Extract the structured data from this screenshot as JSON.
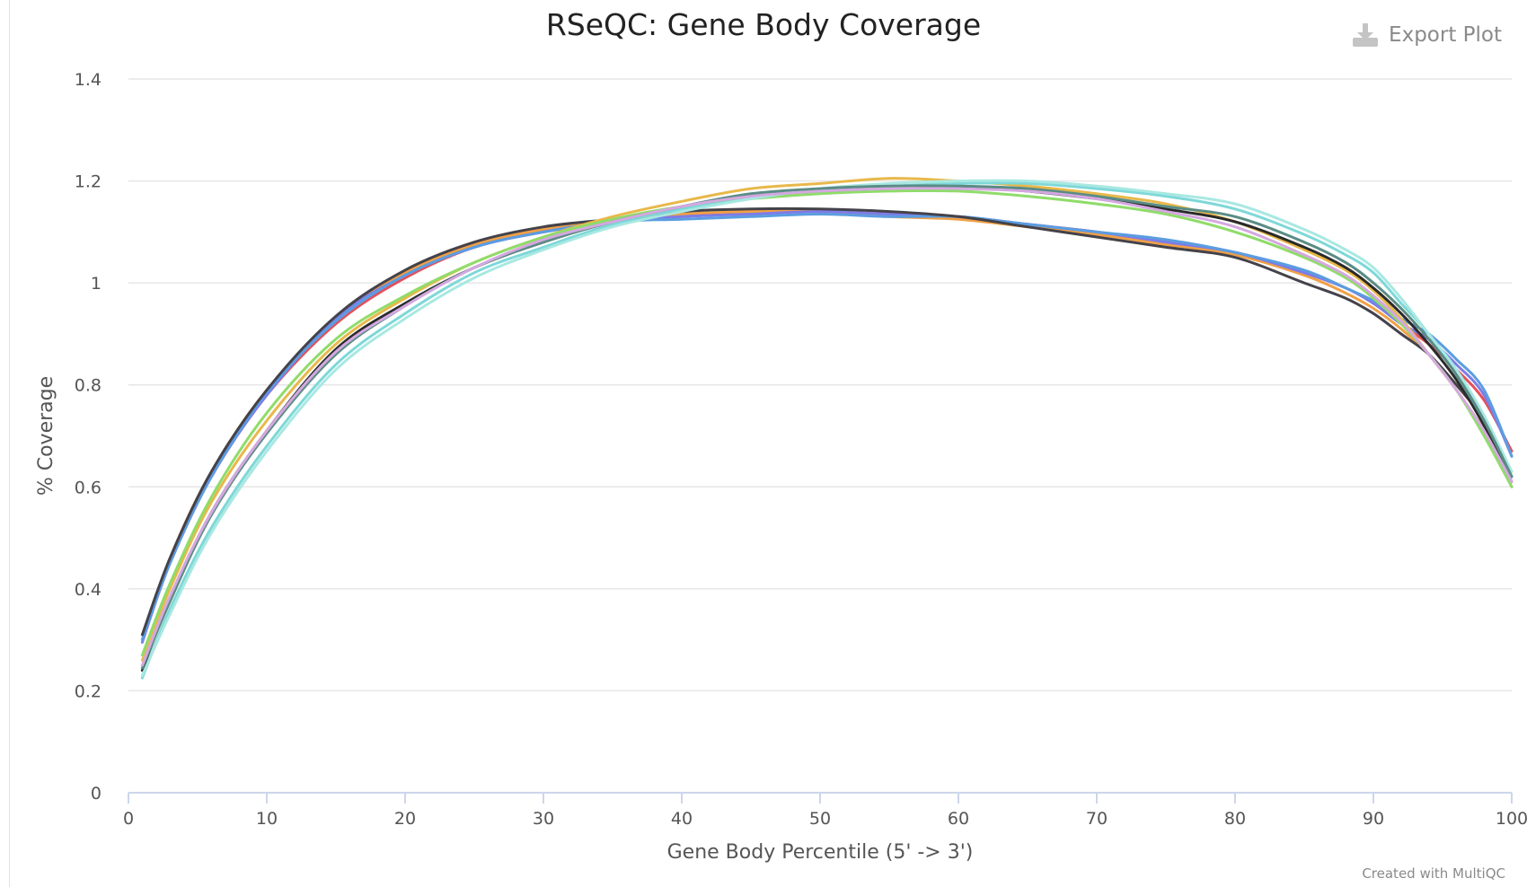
{
  "header": {
    "title": "RSeQC: Gene Body Coverage",
    "export_label": "Export Plot"
  },
  "footer": {
    "credit": "Created with MultiQC"
  },
  "colors": {
    "grid": "#e6e6e6",
    "x_axis": "#ccd6eb"
  },
  "chart_data": {
    "type": "line",
    "title": "RSeQC: Gene Body Coverage",
    "xlabel": "Gene Body Percentile (5' -> 3')",
    "ylabel": "% Coverage",
    "xlim": [
      0,
      100
    ],
    "ylim": [
      0,
      1.4
    ],
    "x_ticks": [
      0,
      10,
      20,
      30,
      40,
      50,
      60,
      70,
      80,
      90,
      100
    ],
    "y_ticks": [
      0,
      0.2,
      0.4,
      0.6,
      0.8,
      1,
      1.2,
      1.4
    ],
    "y_tick_labels": [
      "0",
      "0.2",
      "0.4",
      "0.6",
      "0.8",
      "1",
      "1.2",
      "1.4"
    ],
    "grid": true,
    "legend": "none",
    "x": [
      1,
      3,
      6,
      10,
      15,
      20,
      25,
      30,
      35,
      40,
      45,
      50,
      55,
      60,
      65,
      70,
      75,
      80,
      85,
      88,
      90,
      92,
      94,
      96,
      98,
      100
    ],
    "series": [
      {
        "color": "#e4505a",
        "values": [
          0.3,
          0.45,
          0.62,
          0.78,
          0.92,
          1.01,
          1.07,
          1.1,
          1.12,
          1.13,
          1.14,
          1.14,
          1.135,
          1.13,
          1.115,
          1.1,
          1.08,
          1.06,
          1.02,
          0.99,
          0.96,
          0.92,
          0.88,
          0.83,
          0.77,
          0.67
        ]
      },
      {
        "color": "#f0a046",
        "values": [
          0.3,
          0.46,
          0.63,
          0.79,
          0.93,
          1.02,
          1.075,
          1.105,
          1.12,
          1.135,
          1.14,
          1.14,
          1.13,
          1.125,
          1.11,
          1.095,
          1.075,
          1.055,
          1.015,
          0.98,
          0.95,
          0.91,
          0.86,
          0.8,
          0.73,
          0.63
        ]
      },
      {
        "color": "#7c7ce8",
        "values": [
          0.295,
          0.45,
          0.62,
          0.78,
          0.93,
          1.015,
          1.07,
          1.1,
          1.12,
          1.13,
          1.135,
          1.14,
          1.135,
          1.13,
          1.115,
          1.1,
          1.08,
          1.06,
          1.02,
          0.99,
          0.96,
          0.92,
          0.89,
          0.84,
          0.78,
          0.66
        ]
      },
      {
        "color": "#5b9de0",
        "values": [
          0.3,
          0.45,
          0.62,
          0.785,
          0.925,
          1.015,
          1.07,
          1.1,
          1.12,
          1.125,
          1.13,
          1.135,
          1.13,
          1.13,
          1.115,
          1.1,
          1.085,
          1.06,
          1.025,
          0.99,
          0.965,
          0.93,
          0.9,
          0.85,
          0.79,
          0.66
        ]
      },
      {
        "color": "#44424a",
        "values": [
          0.31,
          0.46,
          0.63,
          0.79,
          0.935,
          1.025,
          1.08,
          1.11,
          1.125,
          1.14,
          1.145,
          1.145,
          1.14,
          1.13,
          1.11,
          1.09,
          1.07,
          1.05,
          1.0,
          0.97,
          0.94,
          0.9,
          0.86,
          0.8,
          0.73,
          0.62
        ]
      },
      {
        "color": "#e8b84a",
        "values": [
          0.26,
          0.4,
          0.57,
          0.73,
          0.88,
          0.97,
          1.04,
          1.09,
          1.13,
          1.16,
          1.185,
          1.195,
          1.205,
          1.2,
          1.19,
          1.175,
          1.155,
          1.12,
          1.065,
          1.025,
          0.985,
          0.93,
          0.86,
          0.79,
          0.71,
          0.6
        ]
      },
      {
        "color": "#2a2a2a",
        "values": [
          0.24,
          0.38,
          0.55,
          0.71,
          0.87,
          0.96,
          1.03,
          1.08,
          1.12,
          1.145,
          1.17,
          1.18,
          1.185,
          1.19,
          1.18,
          1.165,
          1.145,
          1.12,
          1.07,
          1.03,
          0.99,
          0.94,
          0.88,
          0.81,
          0.72,
          0.61
        ]
      },
      {
        "color": "#8fdc6a",
        "values": [
          0.27,
          0.41,
          0.58,
          0.745,
          0.89,
          0.975,
          1.04,
          1.09,
          1.125,
          1.15,
          1.165,
          1.175,
          1.18,
          1.18,
          1.17,
          1.155,
          1.135,
          1.1,
          1.05,
          1.01,
          0.97,
          0.92,
          0.86,
          0.79,
          0.7,
          0.6
        ]
      },
      {
        "color": "#7ed8d8",
        "values": [
          0.225,
          0.36,
          0.52,
          0.68,
          0.84,
          0.94,
          1.02,
          1.07,
          1.115,
          1.145,
          1.165,
          1.185,
          1.19,
          1.195,
          1.195,
          1.185,
          1.17,
          1.145,
          1.095,
          1.055,
          1.02,
          0.96,
          0.9,
          0.82,
          0.73,
          0.62
        ]
      },
      {
        "color": "#a8e8e2",
        "values": [
          0.23,
          0.35,
          0.51,
          0.67,
          0.83,
          0.93,
          1.01,
          1.065,
          1.11,
          1.14,
          1.165,
          1.185,
          1.195,
          1.2,
          1.2,
          1.19,
          1.175,
          1.155,
          1.105,
          1.065,
          1.03,
          0.97,
          0.9,
          0.83,
          0.74,
          0.63
        ]
      },
      {
        "color": "#5a8c84",
        "values": [
          0.245,
          0.375,
          0.545,
          0.705,
          0.86,
          0.955,
          1.03,
          1.08,
          1.12,
          1.15,
          1.175,
          1.185,
          1.19,
          1.19,
          1.185,
          1.17,
          1.15,
          1.13,
          1.08,
          1.04,
          1.0,
          0.95,
          0.89,
          0.82,
          0.73,
          0.62
        ]
      },
      {
        "color": "#d4a8e0",
        "values": [
          0.25,
          0.385,
          0.55,
          0.71,
          0.865,
          0.955,
          1.03,
          1.085,
          1.12,
          1.15,
          1.17,
          1.18,
          1.185,
          1.185,
          1.18,
          1.165,
          1.14,
          1.11,
          1.055,
          1.015,
          0.975,
          0.925,
          0.86,
          0.79,
          0.71,
          0.61
        ]
      }
    ]
  }
}
